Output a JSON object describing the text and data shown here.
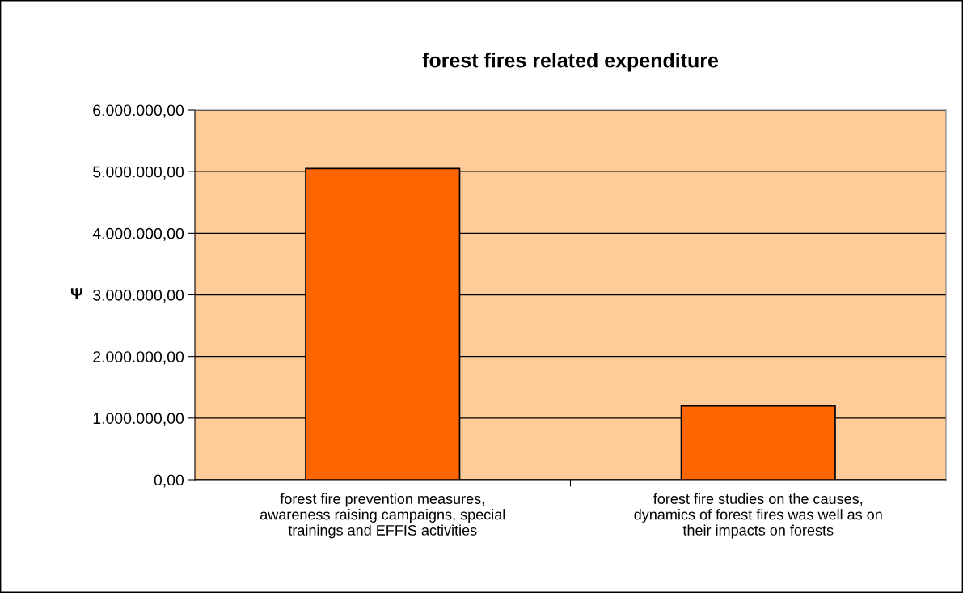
{
  "chart_data": {
    "type": "bar",
    "title": "forest fires related expenditure",
    "ylabel": "Ψ",
    "categories": [
      "forest fire prevention measures,\nawareness raising campaigns, special\ntrainings and EFFIS activities",
      "forest fire studies on the causes,\ndynamics of forest fires was well as on\ntheir impacts on forests"
    ],
    "values": [
      5050000,
      1200000
    ],
    "color": "#ff6600",
    "ylim": [
      0,
      6000000
    ],
    "yticks": [
      {
        "value": 0,
        "label": "0,00"
      },
      {
        "value": 1000000,
        "label": "1.000.000,00"
      },
      {
        "value": 2000000,
        "label": "2.000.000,00"
      },
      {
        "value": 3000000,
        "label": "3.000.000,00"
      },
      {
        "value": 4000000,
        "label": "4.000.000,00"
      },
      {
        "value": 5000000,
        "label": "5.000.000,00"
      },
      {
        "value": 6000000,
        "label": "6.000.000,00"
      }
    ],
    "grid": "y"
  }
}
